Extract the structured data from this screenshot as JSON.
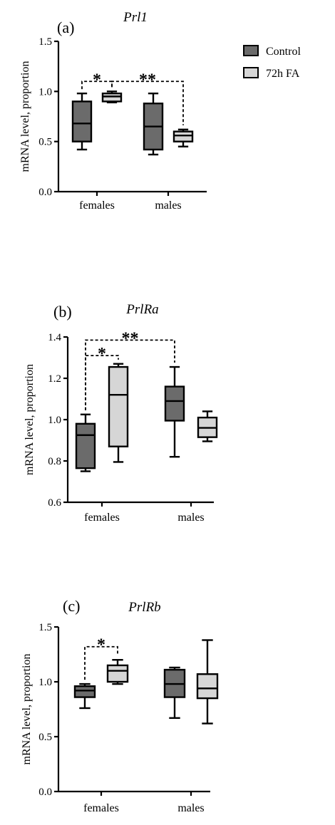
{
  "legend": [
    {
      "label": "Control",
      "color": "#6b6b6b"
    },
    {
      "label": "72h FA",
      "color": "#d6d6d6"
    }
  ],
  "chart_data": [
    {
      "type": "box",
      "panel": "(a)",
      "title": "Prl1",
      "ylabel": "mRNA level, proportion",
      "ylim": [
        0,
        1.5
      ],
      "yticks": [
        0.0,
        0.5,
        1.0,
        1.5
      ],
      "ytick_labels": [
        "0.0",
        "0.5",
        "1.0",
        "1.5"
      ],
      "categories": [
        "females",
        "males"
      ],
      "series": [
        {
          "name": "Control",
          "color": "#6b6b6b",
          "boxes": [
            {
              "min": 0.42,
              "q1": 0.5,
              "median": 0.68,
              "q3": 0.9,
              "max": 0.98
            },
            {
              "min": 0.37,
              "q1": 0.42,
              "median": 0.65,
              "q3": 0.88,
              "max": 0.98
            }
          ]
        },
        {
          "name": "72h FA",
          "color": "#d6d6d6",
          "boxes": [
            {
              "min": 0.89,
              "q1": 0.9,
              "median": 0.95,
              "q3": 0.98,
              "max": 1.0
            },
            {
              "min": 0.45,
              "q1": 0.5,
              "median": 0.56,
              "q3": 0.6,
              "max": 0.62
            }
          ]
        }
      ],
      "annotations": [
        {
          "label": "*",
          "from": [
            0,
            0
          ],
          "to": [
            0,
            1
          ],
          "y": 1.1
        },
        {
          "label": "**",
          "from": [
            0,
            1
          ],
          "to": [
            1,
            1
          ],
          "y": 1.1
        }
      ]
    },
    {
      "type": "box",
      "panel": "(b)",
      "title": "PrlRa",
      "ylabel": "mRNA level, proportion",
      "ylim": [
        0.6,
        1.4
      ],
      "yticks": [
        0.6,
        0.8,
        1.0,
        1.2,
        1.4
      ],
      "ytick_labels": [
        "0.6",
        "0.8",
        "1.0",
        "1.2",
        "1.4"
      ],
      "categories": [
        "females",
        "males"
      ],
      "series": [
        {
          "name": "Control",
          "color": "#6b6b6b",
          "boxes": [
            {
              "min": 0.75,
              "q1": 0.765,
              "median": 0.925,
              "q3": 0.98,
              "max": 1.025
            },
            {
              "min": 0.82,
              "q1": 0.995,
              "median": 1.09,
              "q3": 1.16,
              "max": 1.255
            }
          ]
        },
        {
          "name": "72h FA",
          "color": "#d6d6d6",
          "boxes": [
            {
              "min": 0.795,
              "q1": 0.87,
              "median": 1.12,
              "q3": 1.255,
              "max": 1.27
            },
            {
              "min": 0.895,
              "q1": 0.915,
              "median": 0.96,
              "q3": 1.01,
              "max": 1.04
            }
          ]
        }
      ],
      "annotations": [
        {
          "label": "*",
          "from": [
            0,
            0
          ],
          "to": [
            0,
            1
          ],
          "y": 1.31
        },
        {
          "label": "**",
          "from": [
            0,
            0
          ],
          "to": [
            1,
            0
          ],
          "y": 1.385
        }
      ]
    },
    {
      "type": "box",
      "panel": "(c)",
      "title": "PrlRb",
      "ylabel": "mRNA level, proportion",
      "ylim": [
        0,
        1.5
      ],
      "yticks": [
        0.0,
        0.5,
        1.0,
        1.5
      ],
      "ytick_labels": [
        "0.0",
        "0.5",
        "1.0",
        "1.5"
      ],
      "categories": [
        "females",
        "males"
      ],
      "series": [
        {
          "name": "Control",
          "color": "#6b6b6b",
          "boxes": [
            {
              "min": 0.76,
              "q1": 0.86,
              "median": 0.92,
              "q3": 0.96,
              "max": 0.98
            },
            {
              "min": 0.67,
              "q1": 0.86,
              "median": 0.98,
              "q3": 1.11,
              "max": 1.13
            }
          ]
        },
        {
          "name": "72h FA",
          "color": "#d6d6d6",
          "boxes": [
            {
              "min": 0.98,
              "q1": 1.0,
              "median": 1.1,
              "q3": 1.15,
              "max": 1.2
            },
            {
              "min": 0.62,
              "q1": 0.85,
              "median": 0.94,
              "q3": 1.07,
              "max": 1.38
            }
          ]
        }
      ],
      "annotations": [
        {
          "label": "*",
          "from": [
            0,
            0
          ],
          "to": [
            0,
            1
          ],
          "y": 1.32
        }
      ]
    }
  ]
}
